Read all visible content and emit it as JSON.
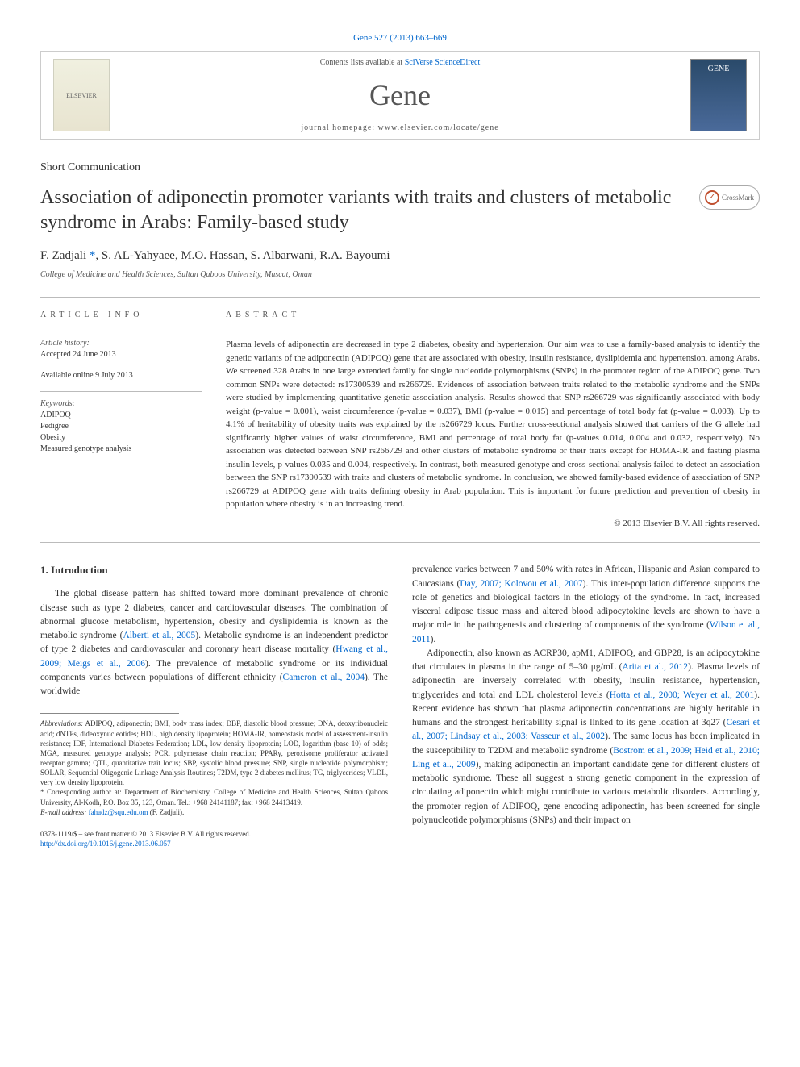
{
  "journal_ref": "Gene 527 (2013) 663–669",
  "header": {
    "contents_prefix": "Contents lists available at ",
    "contents_link": "SciVerse ScienceDirect",
    "journal_name": "Gene",
    "homepage_prefix": "journal homepage: ",
    "homepage_url": "www.elsevier.com/locate/gene",
    "elsevier_alt": "ELSEVIER",
    "cover_alt": "GENE"
  },
  "article_type": "Short Communication",
  "title": "Association of adiponectin promoter variants with traits and clusters of metabolic syndrome in Arabs: Family-based study",
  "crossmark_label": "CrossMark",
  "authors_prefix": "F. Zadjali ",
  "authors_link": "*",
  "authors_rest": ", S. AL-Yahyaee, M.O. Hassan, S. Albarwani, R.A. Bayoumi",
  "affiliation": "College of Medicine and Health Sciences, Sultan Qaboos University, Muscat, Oman",
  "article_info": {
    "header": "ARTICLE INFO",
    "history_label": "Article history:",
    "accepted": "Accepted 24 June 2013",
    "online": "Available online 9 July 2013",
    "keywords_label": "Keywords:",
    "keywords": [
      "ADIPOQ",
      "Pedigree",
      "Obesity",
      "Measured genotype analysis"
    ]
  },
  "abstract": {
    "header": "ABSTRACT",
    "text": "Plasma levels of adiponectin are decreased in type 2 diabetes, obesity and hypertension. Our aim was to use a family-based analysis to identify the genetic variants of the adiponectin (ADIPOQ) gene that are associated with obesity, insulin resistance, dyslipidemia and hypertension, among Arabs. We screened 328 Arabs in one large extended family for single nucleotide polymorphisms (SNPs) in the promoter region of the ADIPOQ gene. Two common SNPs were detected: rs17300539 and rs266729. Evidences of association between traits related to the metabolic syndrome and the SNPs were studied by implementing quantitative genetic association analysis. Results showed that SNP rs266729 was significantly associated with body weight (p-value = 0.001), waist circumference (p-value = 0.037), BMI (p-value = 0.015) and percentage of total body fat (p-value = 0.003). Up to 4.1% of heritability of obesity traits was explained by the rs266729 locus. Further cross-sectional analysis showed that carriers of the G allele had significantly higher values of waist circumference, BMI and percentage of total body fat (p-values 0.014, 0.004 and 0.032, respectively). No association was detected between SNP rs266729 and other clusters of metabolic syndrome or their traits except for HOMA-IR and fasting plasma insulin levels, p-values 0.035 and 0.004, respectively. In contrast, both measured genotype and cross-sectional analysis failed to detect an association between the SNP rs17300539 with traits and clusters of metabolic syndrome. In conclusion, we showed family-based evidence of association of SNP rs266729 at ADIPOQ gene with traits defining obesity in Arab population. This is important for future prediction and prevention of obesity in population where obesity is in an increasing trend.",
    "copyright": "© 2013 Elsevier B.V. All rights reserved."
  },
  "body": {
    "section_title": "1. Introduction",
    "col1_p1_a": "The global disease pattern has shifted toward more dominant prevalence of chronic disease such as type 2 diabetes, cancer and cardiovascular diseases. The combination of abnormal glucose metabolism, hypertension, obesity and dyslipidemia is known as the metabolic syndrome (",
    "col1_p1_link1": "Alberti et al., 2005",
    "col1_p1_b": "). Metabolic syndrome is an independent predictor of type 2 diabetes and cardiovascular and coronary heart disease mortality (",
    "col1_p1_link2": "Hwang et al., 2009; Meigs et al., 2006",
    "col1_p1_c": "). The prevalence of metabolic syndrome or its individual components varies between populations of different ethnicity (",
    "col1_p1_link3": "Cameron et al., 2004",
    "col1_p1_d": "). The worldwide",
    "col2_p1_a": "prevalence varies between 7 and 50% with rates in African, Hispanic and Asian compared to Caucasians (",
    "col2_p1_link1": "Day, 2007; Kolovou et al., 2007",
    "col2_p1_b": "). This inter-population difference supports the role of genetics and biological factors in the etiology of the syndrome. In fact, increased visceral adipose tissue mass and altered blood adipocytokine levels are shown to have a major role in the pathogenesis and clustering of components of the syndrome (",
    "col2_p1_link2": "Wilson et al., 2011",
    "col2_p1_c": ").",
    "col2_p2_a": "Adiponectin, also known as ACRP30, apM1, ADIPOQ, and GBP28, is an adipocytokine that circulates in plasma in the range of 5–30 μg/mL (",
    "col2_p2_link1": "Arita et al., 2012",
    "col2_p2_b": "). Plasma levels of adiponectin are inversely correlated with obesity, insulin resistance, hypertension, triglycerides and total and LDL cholesterol levels (",
    "col2_p2_link2": "Hotta et al., 2000; Weyer et al., 2001",
    "col2_p2_c": "). Recent evidence has shown that plasma adiponectin concentrations are highly heritable in humans and the strongest heritability signal is linked to its gene location at 3q27 (",
    "col2_p2_link3": "Cesari et al., 2007; Lindsay et al., 2003; Vasseur et al., 2002",
    "col2_p2_d": "). The same locus has been implicated in the susceptibility to T2DM and metabolic syndrome (",
    "col2_p2_link4": "Bostrom et al., 2009; Heid et al., 2010; Ling et al., 2009",
    "col2_p2_e": "), making adiponectin an important candidate gene for different clusters of metabolic syndrome. These all suggest a strong genetic component in the expression of circulating adiponectin which might contribute to various metabolic disorders. Accordingly, the promoter region of ADIPOQ, gene encoding adiponectin, has been screened for single polynucleotide polymorphisms (SNPs) and their impact on"
  },
  "footnotes": {
    "abbrev_label": "Abbreviations:",
    "abbrev_text": " ADIPOQ, adiponectin; BMI, body mass index; DBP, diastolic blood pressure; DNA, deoxyribonucleic acid; dNTPs, dideoxynucleotides; HDL, high density lipoprotein; HOMA-IR, homeostasis model of assessment-insulin resistance; IDF, International Diabetes Federation; LDL, low density lipoprotein; LOD, logarithm (base 10) of odds; MGA, measured genotype analysis; PCR, polymerase chain reaction; PPARγ, peroxisome proliferator activated receptor gamma; QTL, quantitative trait locus; SBP, systolic blood pressure; SNP, single nucleotide polymorphism; SOLAR, Sequential Oligogenic Linkage Analysis Routines; T2DM, type 2 diabetes mellitus; TG, triglycerides; VLDL, very low density lipoprotein.",
    "corresp_label": "* ",
    "corresp_text": "Corresponding author at: Department of Biochemistry, College of Medicine and Health Sciences, Sultan Qaboos University, Al-Kodh, P.O. Box 35, 123, Oman. Tel.: +968 24141187; fax: +968 24413419.",
    "email_label": "E-mail address: ",
    "email": "fahadz@squ.edu.om",
    "email_suffix": " (F. Zadjali)."
  },
  "footer": {
    "issn": "0378-1119/$ – see front matter © 2013 Elsevier B.V. All rights reserved.",
    "doi": "http://dx.doi.org/10.1016/j.gene.2013.06.057"
  },
  "colors": {
    "link": "#0066cc",
    "text": "#333333",
    "light_text": "#555555",
    "border": "#cccccc"
  }
}
